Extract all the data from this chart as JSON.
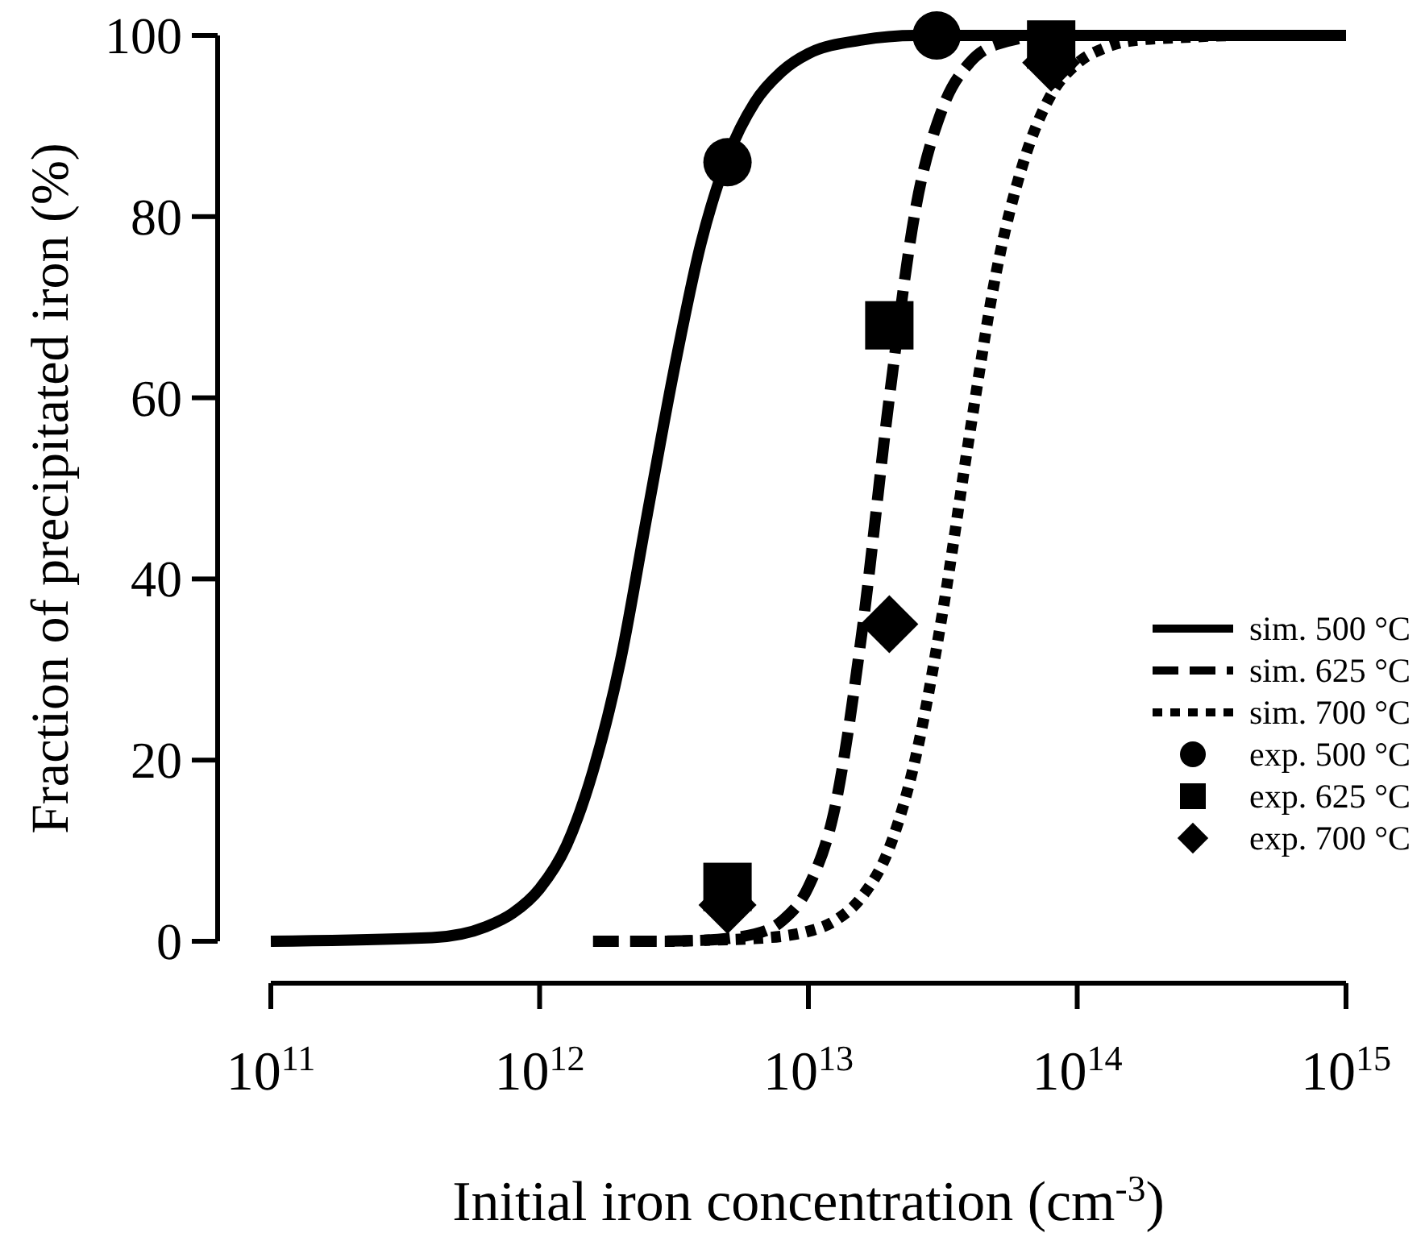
{
  "chart_data": {
    "type": "line",
    "xlabel": "Initial iron concentration (cm$^{-3}$)",
    "ylabel": "Fraction of precipitated iron (%)",
    "log": "x",
    "xlim": [
      100000000000.0,
      1000000000000000.0
    ],
    "ylim": [
      0,
      100
    ],
    "xticks": [
      {
        "value": 100000000000.0,
        "label": "10$^{11}$"
      },
      {
        "value": 1000000000000.0,
        "label": "10$^{12}$"
      },
      {
        "value": 10000000000000.0,
        "label": "10$^{13}$"
      },
      {
        "value": 100000000000000.0,
        "label": "10$^{14}$"
      },
      {
        "value": 1000000000000000.0,
        "label": "10$^{15}$"
      }
    ],
    "yticks": [
      0,
      20,
      40,
      60,
      80,
      100
    ],
    "grid": false,
    "legend": "right",
    "series": [
      {
        "name": "sim. 500 °C",
        "line_style": "solid",
        "marker": "none",
        "color": "#000000",
        "x": [
          100000000000.0,
          398000000000.0,
          631000000000.0,
          794000000000.0,
          1000000000000.0,
          1260000000000.0,
          1580000000000.0,
          2000000000000.0,
          2510000000000.0,
          3160000000000.0,
          3980000000000.0,
          5010000000000.0,
          6310000000000.0,
          7940000000000.0,
          10000000000000.0,
          15800000000000.0,
          25100000000000.0,
          1000000000000000.0
        ],
        "values": [
          0,
          0.4,
          1.6,
          3.1,
          5.8,
          10.6,
          18.8,
          31,
          47,
          63,
          77,
          86.6,
          92.6,
          96,
          98,
          99.5,
          100,
          100
        ]
      },
      {
        "name": "sim. 625 °C",
        "line_style": "dashed",
        "marker": "none",
        "color": "#000000",
        "x": [
          1580000000000.0,
          2510000000000.0,
          3980000000000.0,
          6310000000000.0,
          7940000000000.0,
          10000000000000.0,
          12600000000000.0,
          15800000000000.0,
          20000000000000.0,
          25100000000000.0,
          31600000000000.0,
          39800000000000.0,
          50100000000000.0,
          79400000000000.0,
          501000000000000.0
        ],
        "values": [
          0,
          0,
          0.1,
          0.8,
          2.2,
          6,
          15,
          34,
          60,
          81,
          92,
          97,
          99,
          100,
          100
        ]
      },
      {
        "name": "sim. 700 °C",
        "line_style": "dotted",
        "marker": "none",
        "color": "#000000",
        "x": [
          2510000000000.0,
          3000000000000.0,
          3980000000000.0,
          6310000000000.0,
          10000000000000.0,
          12600000000000.0,
          15800000000000.0,
          20000000000000.0,
          25100000000000.0,
          31600000000000.0,
          39800000000000.0,
          50100000000000.0,
          63100000000000.0,
          79400000000000.0,
          100000000000000.0,
          126000000000000.0,
          158000000000000.0,
          251000000000000.0,
          398000000000000.0,
          794000000000000.0
        ],
        "values": [
          0,
          0,
          0.1,
          0.3,
          1.1,
          2.3,
          4.9,
          10.3,
          20.4,
          36.4,
          56,
          74,
          86,
          93.3,
          96.9,
          98.6,
          99.4,
          99.8,
          100,
          100
        ]
      },
      {
        "name": "exp. 500 °C",
        "type": "scatter",
        "marker": "circle",
        "color": "#000000",
        "x": [
          5000000000000.0,
          30000000000000.0
        ],
        "values": [
          86,
          100
        ]
      },
      {
        "name": "exp. 625 °C",
        "type": "scatter",
        "marker": "square",
        "color": "#000000",
        "x": [
          5000000000000.0,
          20000000000000.0,
          80000000000000.0
        ],
        "values": [
          6,
          68,
          99
        ]
      },
      {
        "name": "exp. 700 °C",
        "type": "scatter",
        "marker": "diamond",
        "color": "#000000",
        "x": [
          5000000000000.0,
          20000000000000.0,
          80000000000000.0
        ],
        "values": [
          4,
          35,
          97
        ]
      }
    ]
  }
}
